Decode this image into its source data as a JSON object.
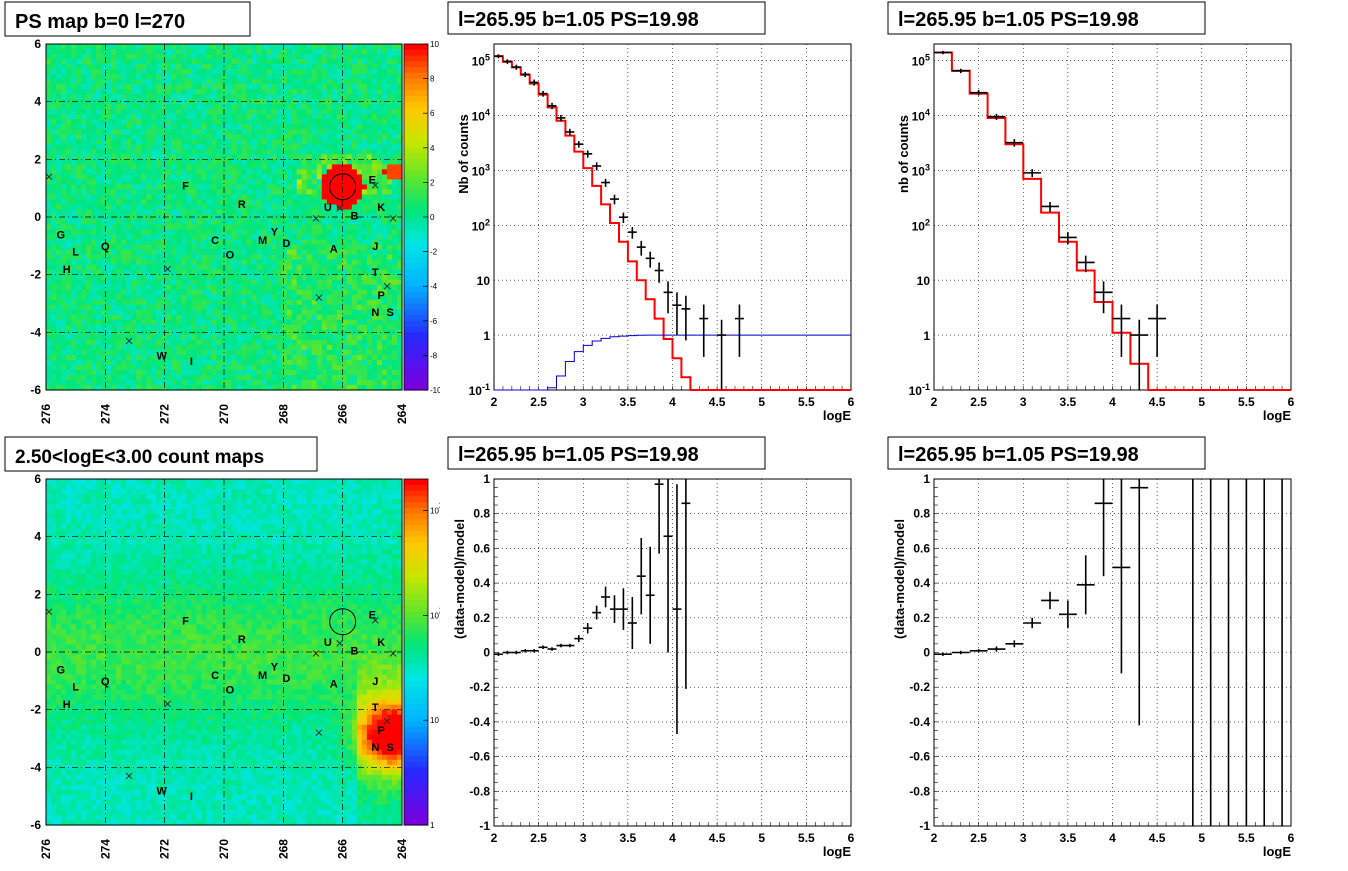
{
  "chart_data": [
    {
      "id": "map_top",
      "type": "heatmap",
      "title": "PS map b=0 l=270",
      "xlim": [
        276,
        264
      ],
      "ylim": [
        -6,
        6
      ],
      "xticks": [
        "276",
        "274",
        "272",
        "270",
        "268",
        "266",
        "264"
      ],
      "yticks": [
        "-6",
        "-4",
        "-2",
        "0",
        "2",
        "4",
        "6"
      ],
      "colorbar": {
        "scale": "linear",
        "range": [
          -10,
          10
        ],
        "ticks": [
          "10",
          "8",
          "6",
          "4",
          "2",
          "0",
          "-2",
          "-4",
          "-6",
          "-8",
          "-10"
        ]
      },
      "circle": {
        "l": 266.0,
        "b": 1.05
      },
      "sources": [
        {
          "name": "F",
          "l": 271.3,
          "b": 1.1
        },
        {
          "name": "R",
          "l": 269.4,
          "b": 0.45
        },
        {
          "name": "G",
          "l": 275.5,
          "b": -0.6
        },
        {
          "name": "L",
          "l": 275.0,
          "b": -1.2
        },
        {
          "name": "Q",
          "l": 274.0,
          "b": -1.0
        },
        {
          "name": "H",
          "l": 275.3,
          "b": -1.8
        },
        {
          "name": "C",
          "l": 270.3,
          "b": -0.8
        },
        {
          "name": "O",
          "l": 269.8,
          "b": -1.3
        },
        {
          "name": "M",
          "l": 268.7,
          "b": -0.8
        },
        {
          "name": "Y",
          "l": 268.3,
          "b": -0.5
        },
        {
          "name": "D",
          "l": 267.9,
          "b": -0.9
        },
        {
          "name": "A",
          "l": 266.3,
          "b": -1.1
        },
        {
          "name": "U",
          "l": 266.5,
          "b": 0.35
        },
        {
          "name": "B",
          "l": 265.6,
          "b": 0.05
        },
        {
          "name": "E",
          "l": 265.0,
          "b": 1.3
        },
        {
          "name": "K",
          "l": 264.7,
          "b": 0.35
        },
        {
          "name": "J",
          "l": 264.9,
          "b": -1.0
        },
        {
          "name": "T",
          "l": 264.9,
          "b": -1.9
        },
        {
          "name": "P",
          "l": 264.7,
          "b": -2.7
        },
        {
          "name": "N",
          "l": 264.9,
          "b": -3.3
        },
        {
          "name": "S",
          "l": 264.4,
          "b": -3.3
        },
        {
          "name": "W",
          "l": 272.1,
          "b": -4.8
        },
        {
          "name": "I",
          "l": 271.1,
          "b": -5.0
        }
      ],
      "crosses": [
        [
          275.9,
          1.4
        ],
        [
          271.9,
          -1.8
        ],
        [
          273.2,
          -4.3
        ],
        [
          266.8,
          -2.8
        ],
        [
          266.9,
          -0.05
        ],
        [
          264.9,
          1.1
        ],
        [
          264.3,
          -0.05
        ],
        [
          264.5,
          -2.4
        ],
        [
          266.1,
          0.3
        ]
      ]
    },
    {
      "id": "spec_top_mid",
      "type": "line",
      "title": "l=265.95 b=1.05 PS=19.98",
      "xlabel": "logE",
      "ylabel": "Nb of counts",
      "xlim": [
        2,
        6
      ],
      "ylim": [
        0.1,
        200000
      ],
      "yscale": "log",
      "xticks": [
        "2",
        "2.5",
        "3",
        "3.5",
        "4",
        "4.5",
        "5",
        "5.5",
        "6"
      ],
      "yticks": [
        {
          "v": 0.1,
          "b": "10",
          "e": "-1"
        },
        {
          "v": 1,
          "b": "1",
          "e": ""
        },
        {
          "v": 10,
          "b": "10",
          "e": ""
        },
        {
          "v": 100,
          "b": "10",
          "e": "2"
        },
        {
          "v": 1000,
          "b": "10",
          "e": "3"
        },
        {
          "v": 10000,
          "b": "10",
          "e": "4"
        },
        {
          "v": 100000,
          "b": "10",
          "e": "5"
        }
      ],
      "series": [
        {
          "kind": "model",
          "color": "#ff0000",
          "width": 0.1,
          "values": [
            120000,
            95000,
            75000,
            55000,
            38000,
            24000,
            14000,
            8000,
            4300,
            2200,
            1100,
            520,
            240,
            110,
            50,
            22,
            10,
            4.5,
            2.0,
            0.85,
            0.38,
            0.17,
            0.1,
            0.1,
            0.1,
            0.1,
            0.1,
            0.1,
            0.1,
            0.1,
            0.1,
            0.1,
            0.1,
            0.1,
            0.1,
            0.1,
            0.1,
            0.1,
            0.1,
            0.1
          ]
        },
        {
          "kind": "efficiency",
          "color": "#0000cc",
          "width": 0.1,
          "values": [
            0.1,
            0.1,
            0.1,
            0.1,
            0.1,
            0.1,
            0.11,
            0.18,
            0.33,
            0.5,
            0.65,
            0.78,
            0.87,
            0.93,
            0.96,
            0.98,
            0.99,
            1.0,
            1.0,
            1.0,
            1.0,
            1.0,
            1.0,
            1.0,
            1.0,
            1.0,
            1.0,
            1.0,
            1.0,
            1.0,
            1.0,
            1.0,
            1.0,
            1.0,
            1.0,
            1.0,
            1.0,
            1.0,
            1.0,
            1.0
          ]
        },
        {
          "kind": "data",
          "color": "#000000",
          "width": 0.1,
          "points": [
            [
              2.05,
              120000,
              10000
            ],
            [
              2.15,
              96000,
              9000
            ],
            [
              2.25,
              76000,
              8000
            ],
            [
              2.35,
              56000,
              6000
            ],
            [
              2.45,
              40000,
              5000
            ],
            [
              2.55,
              25000,
              3000
            ],
            [
              2.65,
              15000,
              2000
            ],
            [
              2.75,
              9000,
              1200
            ],
            [
              2.85,
              5000,
              700
            ],
            [
              2.95,
              3000,
              400
            ],
            [
              3.05,
              2000,
              300
            ],
            [
              3.15,
              1200,
              200
            ],
            [
              3.25,
              600,
              100
            ],
            [
              3.35,
              300,
              60
            ],
            [
              3.45,
              140,
              30
            ],
            [
              3.55,
              75,
              18
            ],
            [
              3.65,
              40,
              12
            ],
            [
              3.75,
              25,
              8
            ],
            [
              3.85,
              15,
              6
            ],
            [
              3.95,
              6,
              3.5
            ],
            [
              4.05,
              3.5,
              2.5
            ],
            [
              4.15,
              3,
              2.2
            ],
            [
              4.35,
              2,
              1.6
            ],
            [
              4.55,
              1,
              0.9
            ],
            [
              4.75,
              2,
              1.6
            ]
          ]
        }
      ]
    },
    {
      "id": "spec_top_right",
      "type": "line",
      "title": "l=265.95 b=1.05 PS=19.98",
      "xlabel": "logE",
      "ylabel": "nb of counts",
      "xlim": [
        2,
        6
      ],
      "ylim": [
        0.1,
        200000
      ],
      "yscale": "log",
      "xticks": [
        "2",
        "2.5",
        "3",
        "3.5",
        "4",
        "4.5",
        "5",
        "5.5",
        "6"
      ],
      "yticks": [
        {
          "v": 0.1,
          "b": "10",
          "e": "-1"
        },
        {
          "v": 1,
          "b": "1",
          "e": ""
        },
        {
          "v": 10,
          "b": "10",
          "e": ""
        },
        {
          "v": 100,
          "b": "10",
          "e": "2"
        },
        {
          "v": 1000,
          "b": "10",
          "e": "3"
        },
        {
          "v": 10000,
          "b": "10",
          "e": "4"
        },
        {
          "v": 100000,
          "b": "10",
          "e": "5"
        }
      ],
      "series": [
        {
          "kind": "model",
          "color": "#ff0000",
          "width": 0.2,
          "values": [
            140000,
            65000,
            25000,
            9000,
            3000,
            700,
            170,
            50,
            15,
            4,
            1.1,
            0.3,
            0.1,
            0.1,
            0.1,
            0.1,
            0.1,
            0.1,
            0.1,
            0.1
          ]
        },
        {
          "kind": "data",
          "color": "#000000",
          "width": 0.2,
          "points": [
            [
              2.1,
              140000,
              10000
            ],
            [
              2.3,
              65000,
              6000
            ],
            [
              2.5,
              26000,
              3000
            ],
            [
              2.7,
              9500,
              1200
            ],
            [
              2.9,
              3200,
              500
            ],
            [
              3.1,
              900,
              150
            ],
            [
              3.3,
              220,
              45
            ],
            [
              3.5,
              60,
              15
            ],
            [
              3.7,
              21,
              7
            ],
            [
              3.9,
              6,
              3.5
            ],
            [
              4.1,
              2,
              1.6
            ],
            [
              4.3,
              1,
              0.9
            ],
            [
              4.5,
              2,
              1.6
            ]
          ]
        }
      ]
    },
    {
      "id": "map_bottom",
      "type": "heatmap",
      "title": "2.50<logE<3.00 count maps",
      "xlim": [
        276,
        264
      ],
      "ylim": [
        -6,
        6
      ],
      "xticks": [
        "276",
        "274",
        "272",
        "270",
        "268",
        "266",
        "264"
      ],
      "yticks": [
        "-6",
        "-4",
        "-2",
        "0",
        "2",
        "4",
        "6"
      ],
      "colorbar": {
        "scale": "log",
        "range": [
          1,
          2000
        ],
        "ticks": [
          {
            "v": 1000,
            "b": "10",
            "e": "3"
          },
          {
            "v": 100,
            "b": "10",
            "e": "2"
          },
          {
            "v": 10,
            "b": "10",
            "e": ""
          },
          {
            "v": 1,
            "b": "1",
            "e": ""
          }
        ]
      },
      "circle": {
        "l": 266.0,
        "b": 1.05
      }
    },
    {
      "id": "res_bottom_mid",
      "type": "scatter",
      "title": "l=265.95 b=1.05 PS=19.98",
      "xlabel": "logE",
      "ylabel": "(data-model)/model",
      "xlim": [
        2,
        6
      ],
      "ylim": [
        -1,
        1
      ],
      "xticks": [
        "2",
        "2.5",
        "3",
        "3.5",
        "4",
        "4.5",
        "5",
        "5.5",
        "6"
      ],
      "yticks": [
        "-1",
        "-0.8",
        "-0.6",
        "-0.4",
        "-0.2",
        "0",
        "0.2",
        "0.4",
        "0.6",
        "0.8",
        "1"
      ],
      "points": [
        [
          2.05,
          -0.01,
          0.01
        ],
        [
          2.15,
          0.0,
          0.01
        ],
        [
          2.25,
          0.0,
          0.01
        ],
        [
          2.35,
          0.01,
          0.01
        ],
        [
          2.45,
          0.01,
          0.01
        ],
        [
          2.55,
          0.03,
          0.01
        ],
        [
          2.65,
          0.02,
          0.01
        ],
        [
          2.75,
          0.04,
          0.01
        ],
        [
          2.85,
          0.04,
          0.01
        ],
        [
          2.95,
          0.08,
          0.02
        ],
        [
          3.05,
          0.14,
          0.03
        ],
        [
          3.15,
          0.23,
          0.04
        ],
        [
          3.25,
          0.32,
          0.06
        ],
        [
          3.35,
          0.25,
          0.08
        ],
        [
          3.45,
          0.25,
          0.12
        ],
        [
          3.55,
          0.17,
          0.15
        ],
        [
          3.65,
          0.44,
          0.22
        ],
        [
          3.75,
          0.33,
          0.28
        ],
        [
          3.85,
          0.97,
          0.4
        ],
        [
          3.95,
          0.67,
          0.67
        ],
        [
          4.05,
          0.25,
          0.72
        ],
        [
          4.15,
          0.86,
          1.07
        ]
      ],
      "width": 0.1
    },
    {
      "id": "res_bottom_right",
      "type": "scatter",
      "title": "l=265.95 b=1.05 PS=19.98",
      "xlabel": "logE",
      "ylabel": "(data-model)/model",
      "xlim": [
        2,
        6
      ],
      "ylim": [
        -1,
        1
      ],
      "xticks": [
        "2",
        "2.5",
        "3",
        "3.5",
        "4",
        "4.5",
        "5",
        "5.5",
        "6"
      ],
      "yticks": [
        "-1",
        "-0.8",
        "-0.6",
        "-0.4",
        "-0.2",
        "0",
        "0.2",
        "0.4",
        "0.6",
        "0.8",
        "1"
      ],
      "points": [
        [
          2.1,
          -0.01,
          0.01
        ],
        [
          2.3,
          0.0,
          0.01
        ],
        [
          2.5,
          0.01,
          0.01
        ],
        [
          2.7,
          0.02,
          0.015
        ],
        [
          2.9,
          0.05,
          0.02
        ],
        [
          3.1,
          0.17,
          0.03
        ],
        [
          3.3,
          0.3,
          0.05
        ],
        [
          3.5,
          0.22,
          0.08
        ],
        [
          3.7,
          0.39,
          0.17
        ],
        [
          3.9,
          0.86,
          0.42
        ],
        [
          4.1,
          0.49,
          0.61
        ],
        [
          4.3,
          0.95,
          1.37
        ]
      ],
      "vlines": [
        4.9,
        5.1,
        5.3,
        5.5,
        5.7,
        5.9
      ],
      "width": 0.2
    }
  ]
}
